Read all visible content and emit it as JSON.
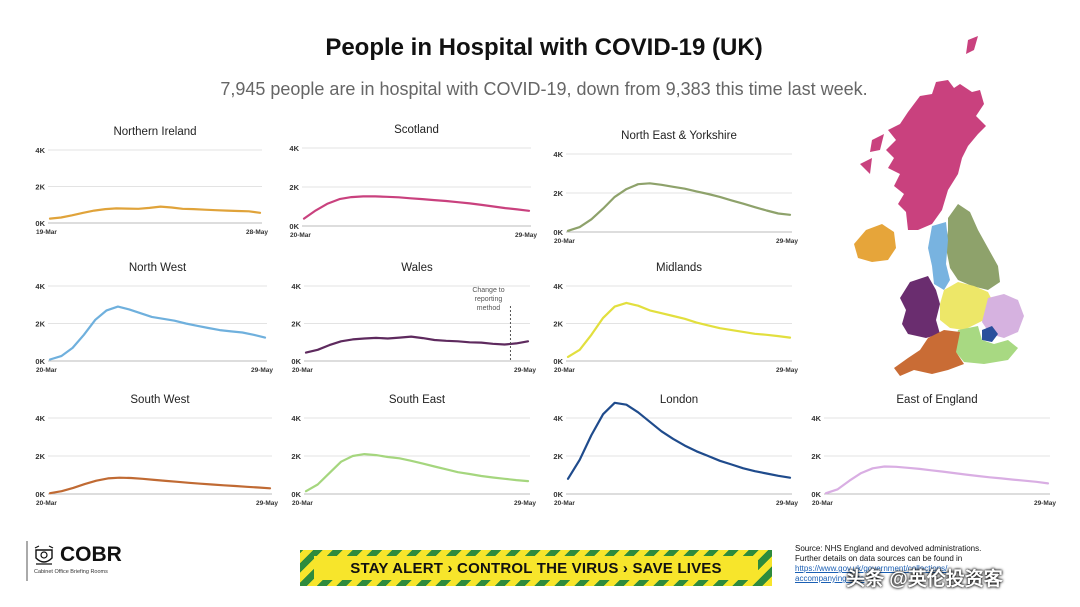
{
  "title": "People in Hospital with COVID-19 (UK)",
  "subtitle": "7,945 people are in hospital with COVID-19, down from 9,383 this time last week.",
  "cobr": {
    "name": "COBR",
    "sub": "Cabinet Office Briefing Rooms"
  },
  "banner": "STAY ALERT › CONTROL THE VIRUS › SAVE LIVES",
  "source": {
    "line1": "Source: NHS England and devolved administrations.",
    "line2": "Further details on data sources can be found in",
    "link1": "https://www.gov.uk/government/collections/",
    "link2": "accompanying data"
  },
  "watermark": "头条 @英伦投资客",
  "map_colors": {
    "Scotland": "#c9417e",
    "Northern Ireland": "#e6a53a",
    "North East & Yorkshire": "#8ea26b",
    "North West": "#78b3e0",
    "Wales": "#6a2d6f",
    "Midlands": "#ede768",
    "East of England": "#d6b2e0",
    "London": "#2a4f9c",
    "South East": "#a8d982",
    "South West": "#c96c35"
  },
  "chart_data": [
    {
      "type": "line",
      "title": "Northern Ireland",
      "color": "#e0a33a",
      "x_start": "19-Mar",
      "x_end": "28-May",
      "ylim": [
        0,
        4000
      ],
      "yticks": [
        "0K",
        "2K",
        "4K"
      ],
      "values": [
        240,
        300,
        420,
        560,
        680,
        760,
        800,
        790,
        780,
        830,
        900,
        850,
        780,
        760,
        730,
        700,
        680,
        660,
        640,
        560
      ]
    },
    {
      "type": "line",
      "title": "Scotland",
      "color": "#c9417e",
      "x_start": "20-Mar",
      "x_end": "29-May",
      "ylim": [
        0,
        4000
      ],
      "yticks": [
        "0K",
        "2K",
        "4K"
      ],
      "values": [
        380,
        800,
        1150,
        1380,
        1480,
        1520,
        1520,
        1500,
        1470,
        1420,
        1380,
        1330,
        1280,
        1220,
        1160,
        1080,
        1000,
        920,
        850,
        780
      ]
    },
    {
      "type": "line",
      "title": "North East & Yorkshire",
      "color": "#8ea26b",
      "x_start": "20-Mar",
      "x_end": "29-May",
      "ylim": [
        0,
        4000
      ],
      "yticks": [
        "0K",
        "2K",
        "4K"
      ],
      "values": [
        60,
        250,
        650,
        1200,
        1800,
        2200,
        2450,
        2500,
        2420,
        2320,
        2220,
        2080,
        1950,
        1800,
        1620,
        1450,
        1270,
        1100,
        950,
        880
      ]
    },
    {
      "type": "line",
      "title": "North West",
      "color": "#6fb0dd",
      "x_start": "20-Mar",
      "x_end": "29-May",
      "ylim": [
        0,
        4000
      ],
      "yticks": [
        "0K",
        "2K",
        "4K"
      ],
      "values": [
        80,
        260,
        700,
        1400,
        2200,
        2700,
        2900,
        2750,
        2550,
        2350,
        2250,
        2150,
        2000,
        1880,
        1760,
        1650,
        1580,
        1520,
        1400,
        1250
      ]
    },
    {
      "type": "line",
      "title": "Wales",
      "color": "#5e2a5e",
      "x_start": "20-Mar",
      "x_end": "29-May",
      "ylim": [
        0,
        4000
      ],
      "yticks": [
        "0K",
        "2K",
        "4K"
      ],
      "values": [
        450,
        600,
        850,
        1050,
        1150,
        1200,
        1230,
        1200,
        1250,
        1300,
        1220,
        1120,
        1080,
        1050,
        1000,
        980,
        920,
        880,
        940,
        1050
      ],
      "annotation": "Change to reporting method"
    },
    {
      "type": "line",
      "title": "Midlands",
      "color": "#e2df3e",
      "x_start": "20-Mar",
      "x_end": "29-May",
      "ylim": [
        0,
        4000
      ],
      "yticks": [
        "0K",
        "2K",
        "4K"
      ],
      "values": [
        220,
        600,
        1400,
        2300,
        2900,
        3100,
        2950,
        2700,
        2550,
        2400,
        2250,
        2050,
        1900,
        1750,
        1650,
        1550,
        1450,
        1400,
        1330,
        1250
      ]
    },
    {
      "type": "line",
      "title": "South West",
      "color": "#c06a33",
      "x_start": "20-Mar",
      "x_end": "29-May",
      "ylim": [
        0,
        4000
      ],
      "yticks": [
        "0K",
        "2K",
        "4K"
      ],
      "values": [
        40,
        150,
        320,
        520,
        700,
        820,
        860,
        840,
        800,
        740,
        690,
        640,
        590,
        540,
        500,
        460,
        420,
        380,
        340,
        300
      ]
    },
    {
      "type": "line",
      "title": "South East",
      "color": "#a5d67e",
      "x_start": "20-Mar",
      "x_end": "29-May",
      "ylim": [
        0,
        4000
      ],
      "yticks": [
        "0K",
        "2K",
        "4K"
      ],
      "values": [
        150,
        500,
        1100,
        1700,
        2000,
        2100,
        2050,
        1950,
        1880,
        1750,
        1600,
        1450,
        1300,
        1150,
        1050,
        950,
        870,
        800,
        730,
        680
      ]
    },
    {
      "type": "line",
      "title": "London",
      "color": "#1f4b8c",
      "x_start": "20-Mar",
      "x_end": "29-May",
      "ylim": [
        0,
        4000
      ],
      "yticks": [
        "0K",
        "2K",
        "4K"
      ],
      "values": [
        800,
        1800,
        3100,
        4200,
        4800,
        4700,
        4300,
        3800,
        3300,
        2900,
        2550,
        2250,
        2000,
        1750,
        1550,
        1350,
        1200,
        1080,
        960,
        860
      ]
    },
    {
      "type": "line",
      "title": "East of England",
      "color": "#d9aee3",
      "x_start": "20-Mar",
      "x_end": "29-May",
      "ylim": [
        0,
        4000
      ],
      "yticks": [
        "0K",
        "2K",
        "4K"
      ],
      "values": [
        40,
        250,
        700,
        1100,
        1350,
        1450,
        1430,
        1380,
        1320,
        1250,
        1180,
        1100,
        1020,
        950,
        880,
        820,
        760,
        700,
        640,
        560
      ]
    }
  ]
}
